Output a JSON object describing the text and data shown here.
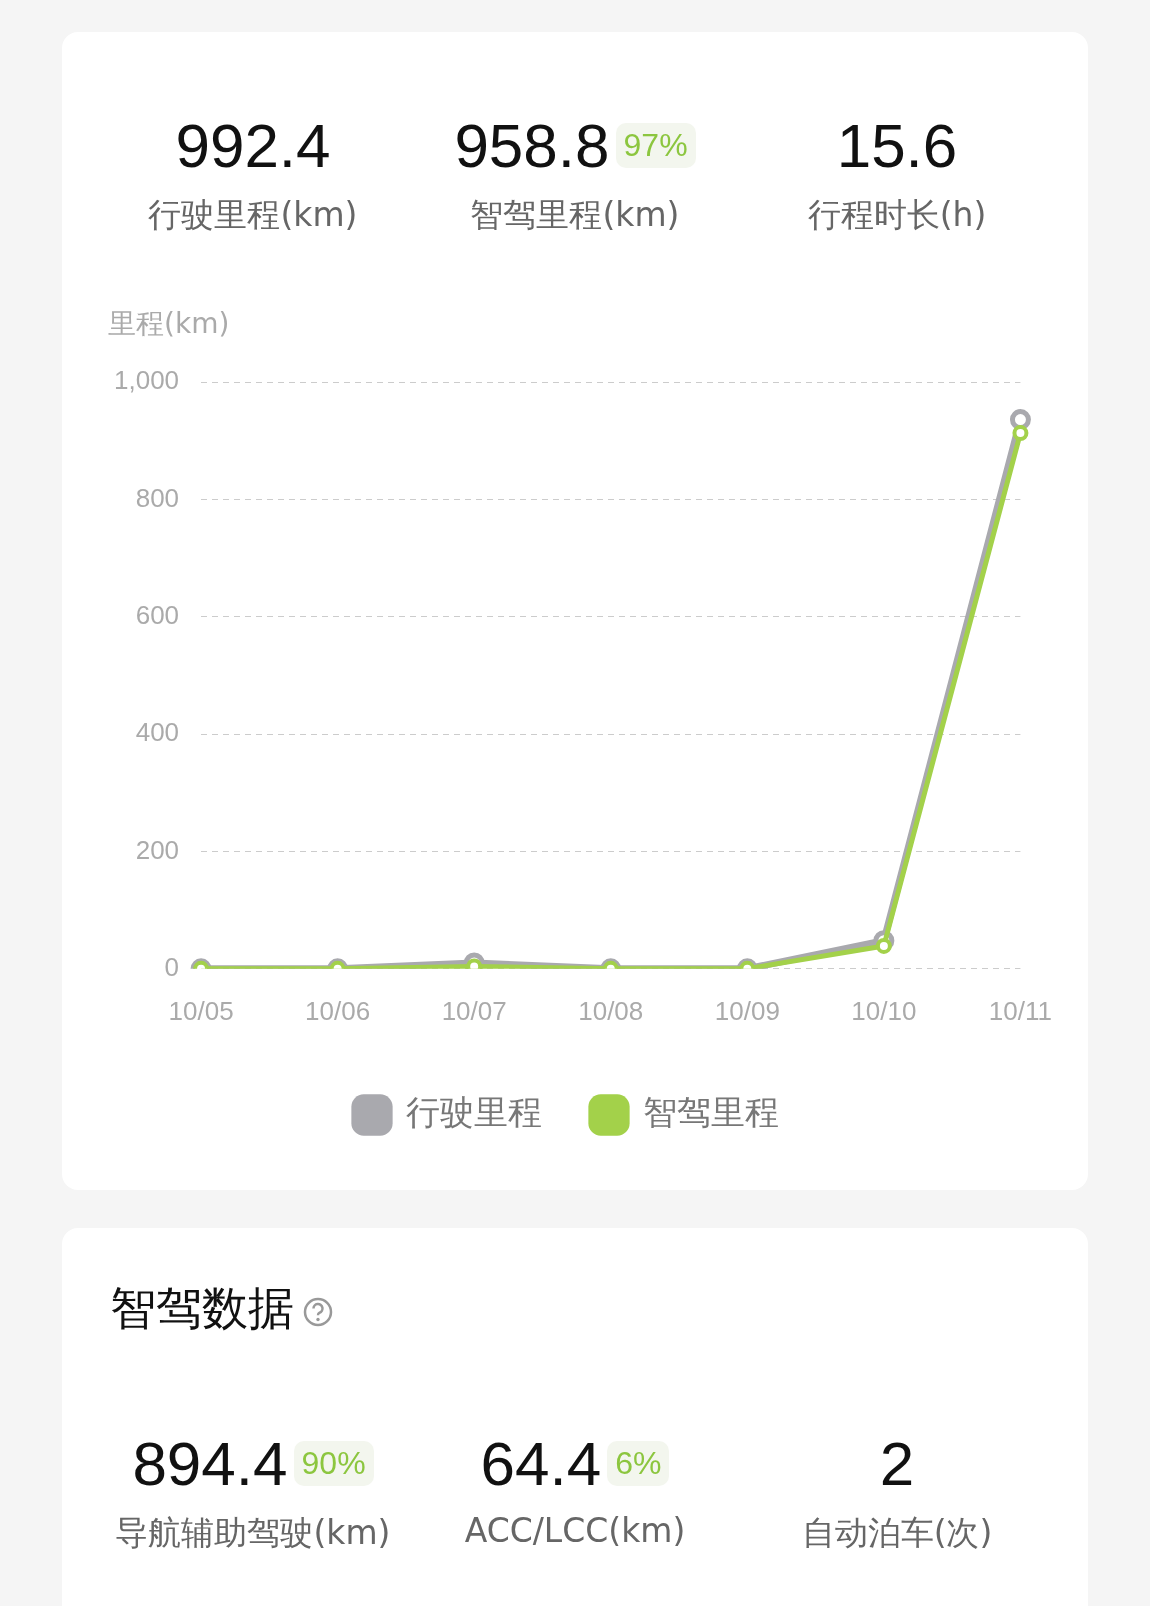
{
  "chart_data": {
    "type": "line",
    "ylabel": "里程(km)",
    "categories": [
      "10/05",
      "10/06",
      "10/07",
      "10/08",
      "10/09",
      "10/10",
      "10/11"
    ],
    "series": [
      {
        "name": "行驶里程",
        "color": "#a9a9ae",
        "values": [
          0,
          0,
          10,
          0,
          0,
          48,
          936
        ]
      },
      {
        "name": "智驾里程",
        "color": "#a3d14a",
        "values": [
          0,
          0,
          4,
          0,
          0,
          39,
          913
        ]
      }
    ],
    "ylim": [
      0,
      1000
    ],
    "yticks": [
      0,
      200,
      400,
      600,
      800,
      {
        "value": 1000,
        "label": "1,000"
      }
    ],
    "grid": "y",
    "legend": "bottom",
    "marker": "circle",
    "line_style": "solid",
    "annotations": [
      "992.4",
      "行驶里程(km)",
      "958.8",
      "97%",
      "智驾里程(km)",
      "15.6",
      "行程时长(h)",
      "智驾数据",
      "894.4",
      "90%",
      "导航辅助驾驶(km)",
      "64.4",
      "6%",
      "ACC/LCC(km)",
      "2",
      "自动泊车(次)"
    ]
  }
}
